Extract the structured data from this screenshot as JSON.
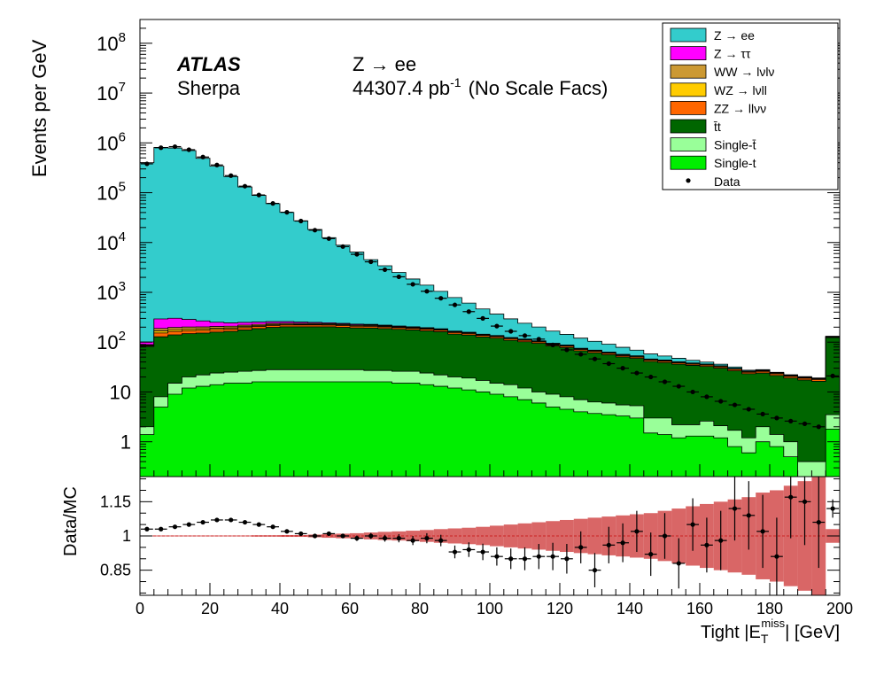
{
  "labels": {
    "atlas": "ATLAS",
    "generator": "Sherpa",
    "process": "Z → ee",
    "lumi_value": "44307.4 pb",
    "lumi_exp": "-1",
    "lumi_note": "(No Scale Facs)"
  },
  "chart_data": [
    {
      "type": "area",
      "stacked": true,
      "ylabel": "Events per GeV",
      "yscale": "log",
      "ylim": [
        0.2,
        300000000
      ],
      "xlim": [
        0,
        200
      ],
      "yticks": [
        {
          "value": 1,
          "label": "1"
        },
        {
          "value": 10,
          "label": "10"
        },
        {
          "value": 100,
          "label": "10",
          "exp": "2"
        },
        {
          "value": 1000,
          "label": "10",
          "exp": "3"
        },
        {
          "value": 10000,
          "label": "10",
          "exp": "4"
        },
        {
          "value": 100000,
          "label": "10",
          "exp": "5"
        },
        {
          "value": 1000000,
          "label": "10",
          "exp": "6"
        },
        {
          "value": 10000000,
          "label": "10",
          "exp": "7"
        },
        {
          "value": 100000000,
          "label": "10",
          "exp": "8"
        }
      ],
      "bin_edges_step": 4,
      "legend_position": "top-right",
      "series": [
        {
          "name": "Single-t",
          "color": "#00ee00",
          "values": [
            1.4,
            5,
            9,
            12,
            13,
            14,
            15,
            15,
            16,
            16,
            16,
            16,
            16,
            16,
            16,
            16,
            16,
            16,
            15,
            15,
            14,
            13,
            12,
            11,
            10,
            9,
            8,
            7,
            6,
            5,
            4.5,
            4,
            3.7,
            3.5,
            3.3,
            3,
            1.5,
            1.4,
            1.2,
            1.3,
            1.3,
            1.2,
            0.8,
            0.6,
            1.0,
            0.8,
            0.5,
            0.2,
            0.2,
            1.8
          ]
        },
        {
          "name": "Single-t̄",
          "color": "#99ff99",
          "values": [
            0.6,
            3,
            6,
            8,
            9,
            10,
            10,
            11,
            11,
            12,
            12,
            12,
            12,
            12,
            12,
            12,
            11,
            11,
            11,
            11,
            10,
            9,
            8,
            8,
            7,
            6,
            6,
            5,
            4,
            4,
            3.5,
            3.0,
            2.6,
            2.5,
            2.2,
            2.3,
            1.5,
            1.6,
            1.0,
            0.9,
            1.3,
            0.9,
            0.9,
            0.6,
            1.0,
            0.6,
            0.5,
            0.2,
            0.2,
            1.7
          ]
        },
        {
          "name": "t̄t",
          "color": "#006600",
          "values": [
            80,
            120,
            125,
            128,
            130,
            135,
            140,
            150,
            160,
            170,
            175,
            175,
            175,
            175,
            170,
            165,
            165,
            160,
            155,
            150,
            145,
            140,
            125,
            120,
            110,
            105,
            95,
            90,
            85,
            75,
            70,
            60,
            55,
            50,
            45,
            42,
            38,
            36,
            34,
            32,
            30,
            28,
            25,
            22,
            22,
            20,
            18,
            17,
            16,
            120
          ]
        },
        {
          "name": "ZZ → llνν",
          "color": "#ff6600",
          "values": [
            3,
            25,
            24,
            22,
            21,
            20,
            19,
            19,
            19,
            19,
            18,
            18,
            18,
            17,
            17,
            16,
            16,
            15,
            14,
            13,
            13,
            12,
            11,
            10,
            9,
            8.5,
            8,
            7,
            6,
            6,
            5,
            4.5,
            4,
            3.6,
            3.2,
            2.9,
            2.4,
            2.4,
            2.2,
            2.0,
            2.0,
            1.9,
            1.8,
            1.7,
            1.9,
            1.7,
            1.6,
            1.5,
            1.4,
            3
          ]
        },
        {
          "name": "WZ → lνll",
          "color": "#ffcc00",
          "values": [
            2,
            15,
            14,
            13,
            12,
            11,
            10,
            10,
            9,
            9,
            8,
            7,
            7,
            7,
            6,
            6,
            6,
            5,
            5,
            5,
            4,
            4,
            3.5,
            3.5,
            3,
            2.5,
            2.5,
            2.1,
            2,
            1.9,
            1.9,
            1.8,
            1.8,
            1.7,
            1.6,
            1.5,
            1.3,
            1.2,
            1.1,
            1.0,
            0.9,
            0.9,
            0.8,
            0.7,
            0.7,
            0.6,
            0.6,
            0.5,
            0.5,
            1.5
          ]
        },
        {
          "name": "WW → lνlν",
          "color": "#cc9933",
          "values": [
            2,
            20,
            19,
            18,
            17,
            16,
            15,
            14,
            13,
            12,
            11,
            10,
            9,
            8,
            8,
            7,
            7,
            6,
            6,
            5,
            5,
            4,
            4,
            3,
            3,
            3,
            2.5,
            2.5,
            2,
            1.8,
            1.6,
            1.4,
            1.2,
            1.1,
            1.0,
            0.9,
            0.8,
            0.7,
            0.6,
            0.6,
            0.5,
            0.5,
            0.4,
            0.4,
            0.4,
            0.3,
            0.3,
            0.3,
            0.3,
            1
          ]
        },
        {
          "name": "Z → ττ",
          "color": "#ff00ff",
          "values": [
            12,
            105,
            105,
            85,
            65,
            45,
            35,
            30,
            25,
            20,
            18,
            15,
            12,
            10,
            9,
            8,
            7,
            6,
            5,
            4,
            4,
            3.5,
            3,
            2.5,
            2,
            2,
            1.7,
            1.5,
            1.2,
            1,
            0.9,
            0.8,
            0.7,
            0.6,
            0.5,
            0.5,
            0.4,
            0.4,
            0.3,
            0.3,
            0.3,
            0.2,
            0.2,
            0.2,
            0.2,
            0.2,
            0.2,
            0.2,
            0.2,
            0.5
          ]
        },
        {
          "name": "Z → ee",
          "color": "#33cccc",
          "values": [
            400000,
            810000,
            790000,
            700000,
            490000,
            340000,
            210000,
            130000,
            88000,
            60000,
            40000,
            27000,
            18000,
            12300,
            8600,
            6200,
            4300,
            3200,
            2300,
            1650,
            1200,
            860,
            620,
            450,
            320,
            230,
            170,
            125,
            95,
            72,
            56,
            45,
            35,
            28,
            22,
            16,
            12,
            9,
            7,
            5,
            3.5,
            2.5,
            1.8,
            1.2,
            0.9,
            0.6,
            0.5,
            0.4,
            0.3,
            2
          ]
        }
      ],
      "data_points": {
        "name": "Data",
        "values": [
          380000,
          800000,
          840000,
          730000,
          520000,
          360000,
          220000,
          135000,
          90000,
          61000,
          40500,
          27000,
          17700,
          12000,
          8300,
          5800,
          4100,
          2850,
          2050,
          1450,
          1050,
          760,
          560,
          410,
          300,
          210,
          165,
          135,
          115,
          88,
          70,
          57,
          46,
          37,
          30,
          24,
          20,
          16,
          13,
          10,
          8,
          6.5,
          5.5,
          4.5,
          3.6,
          3.0,
          2.6,
          2.3,
          2.0,
          21
        ]
      }
    },
    {
      "type": "scatter",
      "ylabel": "Data/MC",
      "xlabel": "Tight |E",
      "xlabel_sub": "T",
      "xlabel_sup": "miss",
      "xlabel_tail": "| [GeV]",
      "xlim": [
        0,
        200
      ],
      "ylim": [
        0.74,
        1.26
      ],
      "xticks": [
        0,
        20,
        40,
        60,
        80,
        100,
        120,
        140,
        160,
        180,
        200
      ],
      "yticks": [
        {
          "value": 0.85,
          "label": "0.85"
        },
        {
          "value": 1,
          "label": "1"
        },
        {
          "value": 1.15,
          "label": "1.15"
        }
      ],
      "ratio": [
        1.03,
        1.03,
        1.04,
        1.05,
        1.06,
        1.07,
        1.07,
        1.06,
        1.05,
        1.04,
        1.02,
        1.01,
        1.0,
        1.01,
        1.0,
        0.99,
        1.0,
        0.99,
        0.99,
        0.98,
        0.99,
        0.98,
        0.93,
        0.94,
        0.93,
        0.91,
        0.9,
        0.9,
        0.91,
        0.91,
        0.9,
        0.95,
        0.85,
        0.96,
        0.97,
        1.02,
        0.92,
        1.0,
        0.88,
        1.05,
        0.96,
        0.98,
        1.12,
        1.09,
        1.02,
        0.91,
        1.17,
        1.15,
        1.06,
        1.12
      ],
      "ratio_err": [
        0.005,
        0.004,
        0.004,
        0.004,
        0.004,
        0.004,
        0.005,
        0.005,
        0.005,
        0.005,
        0.006,
        0.006,
        0.007,
        0.008,
        0.01,
        0.012,
        0.013,
        0.015,
        0.018,
        0.02,
        0.022,
        0.025,
        0.028,
        0.032,
        0.036,
        0.04,
        0.045,
        0.05,
        0.055,
        0.06,
        0.065,
        0.07,
        0.075,
        0.08,
        0.085,
        0.09,
        0.095,
        0.1,
        0.11,
        0.115,
        0.12,
        0.13,
        0.14,
        0.15,
        0.16,
        0.17,
        0.18,
        0.19,
        0.2,
        0.04
      ],
      "mc_uncertainty": [
        0.002,
        0.002,
        0.002,
        0.002,
        0.002,
        0.002,
        0.002,
        0.002,
        0.003,
        0.003,
        0.004,
        0.004,
        0.006,
        0.008,
        0.01,
        0.012,
        0.015,
        0.018,
        0.02,
        0.023,
        0.026,
        0.03,
        0.033,
        0.036,
        0.04,
        0.045,
        0.05,
        0.055,
        0.06,
        0.065,
        0.07,
        0.075,
        0.08,
        0.085,
        0.09,
        0.095,
        0.1,
        0.11,
        0.12,
        0.13,
        0.14,
        0.15,
        0.16,
        0.17,
        0.19,
        0.2,
        0.22,
        0.24,
        0.26,
        0.03
      ],
      "reference_line": 1,
      "uncertainty_color": "#cc3333"
    }
  ]
}
